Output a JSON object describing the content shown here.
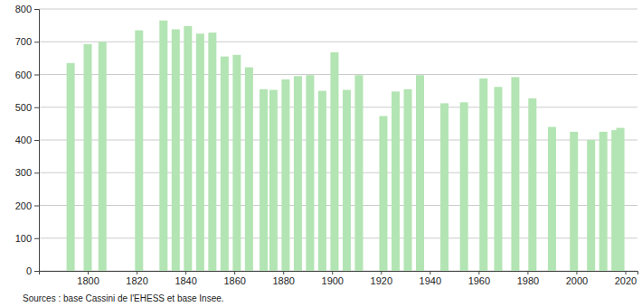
{
  "chart_data": {
    "type": "bar",
    "source": "Sources : base Cassini de l'EHESS et base Insee.",
    "x": [
      1793,
      1800,
      1806,
      1821,
      1831,
      1836,
      1841,
      1846,
      1851,
      1856,
      1861,
      1866,
      1872,
      1876,
      1881,
      1886,
      1891,
      1896,
      1901,
      1906,
      1911,
      1921,
      1926,
      1931,
      1936,
      1946,
      1954,
      1962,
      1968,
      1975,
      1982,
      1990,
      1999,
      2006,
      2011,
      2016,
      2018
    ],
    "values": [
      635,
      693,
      700,
      735,
      765,
      738,
      748,
      725,
      728,
      655,
      660,
      622,
      555,
      553,
      585,
      595,
      598,
      550,
      668,
      553,
      598,
      473,
      548,
      555,
      598,
      512,
      515,
      588,
      562,
      592,
      527,
      440,
      425,
      400,
      425,
      430,
      437
    ],
    "color": "#b3e4b3",
    "xlim": [
      1780,
      2025
    ],
    "xticks": [
      1800,
      1820,
      1840,
      1860,
      1880,
      1900,
      1920,
      1940,
      1960,
      1980,
      2000,
      2020
    ],
    "ylim": [
      0,
      800
    ],
    "yticks": [
      0,
      100,
      200,
      300,
      400,
      500,
      600,
      700,
      800
    ],
    "grid": true
  }
}
